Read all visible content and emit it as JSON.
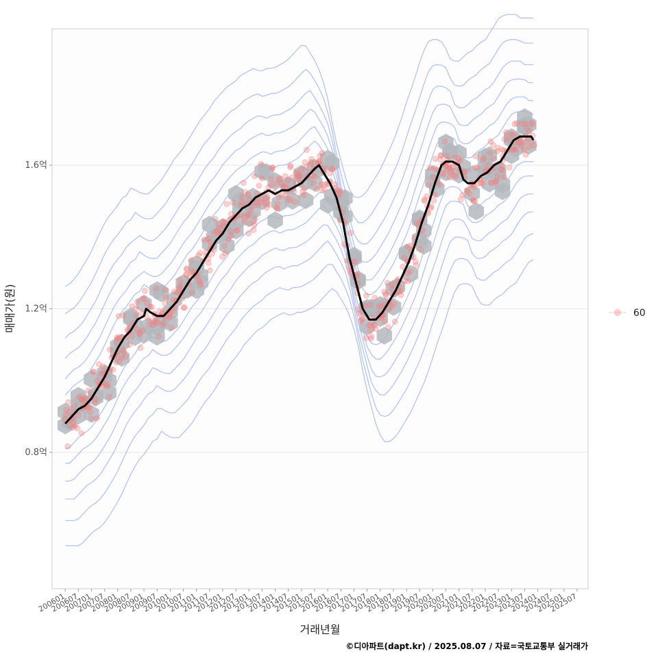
{
  "chart_data": {
    "type": "scatter",
    "title": "",
    "xlabel": "거래년월",
    "ylabel": "매매가(원)",
    "x_ticks": [
      "200601",
      "200607",
      "200701",
      "200707",
      "200801",
      "200807",
      "200901",
      "200907",
      "201001",
      "201007",
      "201101",
      "201107",
      "201201",
      "201207",
      "201301",
      "201307",
      "201401",
      "201407",
      "201501",
      "201507",
      "201601",
      "201607",
      "201701",
      "201707",
      "201801",
      "201807",
      "201901",
      "201907",
      "202001",
      "202007",
      "202101",
      "202107",
      "202201",
      "202207",
      "202301",
      "202307",
      "202401",
      "202407",
      "202501",
      "202507"
    ],
    "y_ticks": [
      {
        "value": 0.8,
        "label": "0.8억"
      },
      {
        "value": 1.2,
        "label": "1.2억"
      },
      {
        "value": 1.6,
        "label": "1.6억"
      }
    ],
    "xlim_month_index": [
      -6,
      239
    ],
    "ylim": [
      0.42,
      1.98
    ],
    "legend": {
      "label": "60",
      "placement": "right"
    },
    "series": [
      {
        "name": "moving average",
        "color": "#000000",
        "points": [
          [
            0,
            0.88
          ],
          [
            3,
            0.9
          ],
          [
            6,
            0.92
          ],
          [
            9,
            0.93
          ],
          [
            12,
            0.95
          ],
          [
            15,
            0.98
          ],
          [
            18,
            1.01
          ],
          [
            21,
            1.05
          ],
          [
            24,
            1.09
          ],
          [
            27,
            1.12
          ],
          [
            30,
            1.14
          ],
          [
            33,
            1.17
          ],
          [
            36,
            1.18
          ],
          [
            37,
            1.2
          ],
          [
            39,
            1.19
          ],
          [
            42,
            1.18
          ],
          [
            45,
            1.18
          ],
          [
            48,
            1.2
          ],
          [
            51,
            1.22
          ],
          [
            54,
            1.25
          ],
          [
            57,
            1.28
          ],
          [
            60,
            1.3
          ],
          [
            63,
            1.33
          ],
          [
            66,
            1.36
          ],
          [
            69,
            1.39
          ],
          [
            72,
            1.41
          ],
          [
            75,
            1.44
          ],
          [
            78,
            1.46
          ],
          [
            81,
            1.48
          ],
          [
            84,
            1.49
          ],
          [
            87,
            1.51
          ],
          [
            90,
            1.52
          ],
          [
            93,
            1.53
          ],
          [
            96,
            1.52
          ],
          [
            99,
            1.53
          ],
          [
            102,
            1.53
          ],
          [
            105,
            1.54
          ],
          [
            108,
            1.55
          ],
          [
            111,
            1.57
          ],
          [
            114,
            1.59
          ],
          [
            116,
            1.6
          ],
          [
            118,
            1.58
          ],
          [
            121,
            1.55
          ],
          [
            124,
            1.51
          ],
          [
            127,
            1.44
          ],
          [
            130,
            1.34
          ],
          [
            133,
            1.27
          ],
          [
            136,
            1.2
          ],
          [
            139,
            1.17
          ],
          [
            142,
            1.17
          ],
          [
            145,
            1.19
          ],
          [
            148,
            1.22
          ],
          [
            151,
            1.25
          ],
          [
            154,
            1.29
          ],
          [
            157,
            1.33
          ],
          [
            160,
            1.38
          ],
          [
            163,
            1.44
          ],
          [
            166,
            1.49
          ],
          [
            169,
            1.55
          ],
          [
            172,
            1.6
          ],
          [
            174,
            1.61
          ],
          [
            177,
            1.61
          ],
          [
            180,
            1.6
          ],
          [
            182,
            1.56
          ],
          [
            184,
            1.55
          ],
          [
            187,
            1.55
          ],
          [
            190,
            1.57
          ],
          [
            193,
            1.58
          ],
          [
            196,
            1.6
          ],
          [
            199,
            1.61
          ],
          [
            202,
            1.64
          ],
          [
            205,
            1.67
          ],
          [
            208,
            1.68
          ],
          [
            211,
            1.68
          ],
          [
            213,
            1.68
          ],
          [
            214,
            1.67
          ]
        ]
      }
    ],
    "scatter_color": "#f08080",
    "hexbin_color": "#b4b8bd",
    "contour_color": "#9bb0ee"
  },
  "credit": "©디아파트(dapt.kr) / 2025.08.07 / 자료=국토교통부 실거래가"
}
